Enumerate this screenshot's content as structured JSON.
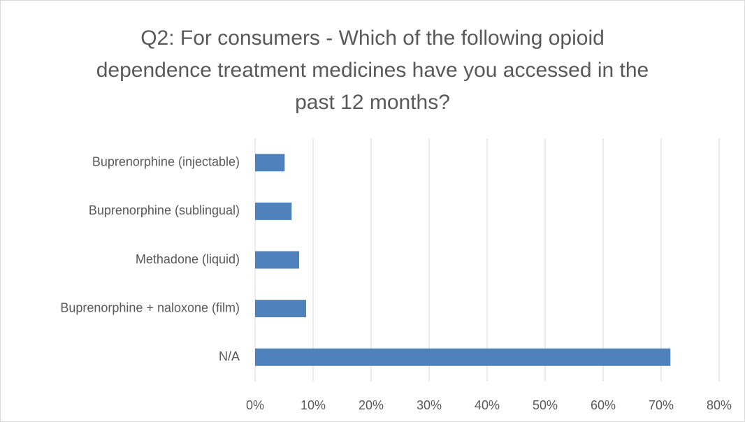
{
  "chart_data": {
    "type": "bar",
    "orientation": "horizontal",
    "title": "Q2: For consumers - Which of the following opioid dependence treatment medicines have you accessed in the past 12 months?",
    "categories": [
      "Buprenorphine (injectable)",
      "Buprenorphine (sublingual)",
      "Methadone (liquid)",
      "Buprenorphine + naloxone (film)",
      "N/A"
    ],
    "values": [
      5.1,
      6.3,
      7.6,
      8.8,
      71.6
    ],
    "color": "#4f81bd",
    "xlim": [
      0,
      80
    ],
    "xticks": [
      {
        "value": 0,
        "label": "0%"
      },
      {
        "value": 10,
        "label": "10%"
      },
      {
        "value": 20,
        "label": "20%"
      },
      {
        "value": 30,
        "label": "30%"
      },
      {
        "value": 40,
        "label": "40%"
      },
      {
        "value": 50,
        "label": "50%"
      },
      {
        "value": 60,
        "label": "60%"
      },
      {
        "value": 70,
        "label": "70%"
      },
      {
        "value": 80,
        "label": "80%"
      }
    ],
    "grid": true
  }
}
